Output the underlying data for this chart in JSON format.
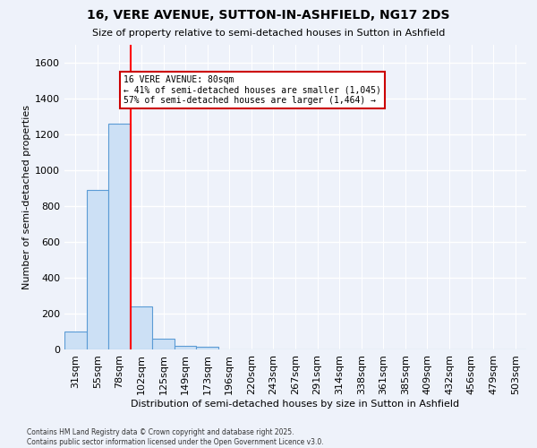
{
  "title1": "16, VERE AVENUE, SUTTON-IN-ASHFIELD, NG17 2DS",
  "title2": "Size of property relative to semi-detached houses in Sutton in Ashfield",
  "xlabel": "Distribution of semi-detached houses by size in Sutton in Ashfield",
  "ylabel": "Number of semi-detached properties",
  "categories": [
    "31sqm",
    "55sqm",
    "78sqm",
    "102sqm",
    "125sqm",
    "149sqm",
    "173sqm",
    "196sqm",
    "220sqm",
    "243sqm",
    "267sqm",
    "291sqm",
    "314sqm",
    "338sqm",
    "361sqm",
    "385sqm",
    "409sqm",
    "432sqm",
    "456sqm",
    "479sqm",
    "503sqm"
  ],
  "values": [
    100,
    890,
    1260,
    240,
    60,
    20,
    15,
    0,
    0,
    0,
    0,
    0,
    0,
    0,
    0,
    0,
    0,
    0,
    0,
    0,
    0
  ],
  "bar_color": "#cce0f5",
  "bar_edge_color": "#5b9bd5",
  "red_line_x": 2.5,
  "annotation_text": "16 VERE AVENUE: 80sqm\n← 41% of semi-detached houses are smaller (1,045)\n57% of semi-detached houses are larger (1,464) →",
  "annotation_box_color": "#ffffff",
  "annotation_box_edge_color": "#cc0000",
  "ylim": [
    0,
    1700
  ],
  "yticks": [
    0,
    200,
    400,
    600,
    800,
    1000,
    1200,
    1400,
    1600
  ],
  "background_color": "#eef2fa",
  "grid_color": "#ffffff",
  "footer1": "Contains HM Land Registry data © Crown copyright and database right 2025.",
  "footer2": "Contains public sector information licensed under the Open Government Licence v3.0."
}
